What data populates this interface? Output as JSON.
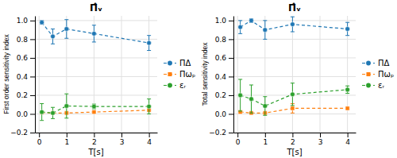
{
  "chart_data": [
    {
      "type": "line",
      "title": "Π̂ᵥ",
      "xlabel": "T[s]",
      "ylabel": "First order sensitivity index",
      "x": [
        0.1,
        0.5,
        1.0,
        2.0,
        4.0
      ],
      "series": [
        {
          "name": "ΠΔ",
          "marker": "circle",
          "line_style": "dashed",
          "values": [
            0.98,
            0.83,
            0.91,
            0.86,
            0.76
          ],
          "errors": [
            0.02,
            0.08,
            0.1,
            0.09,
            0.08
          ]
        },
        {
          "name": "Πωₚ",
          "marker": "square",
          "line_style": "dashed",
          "values": [
            0.015,
            0.01,
            0.01,
            0.02,
            0.04
          ],
          "errors": [
            0.004,
            0.004,
            0.004,
            0.004,
            0.004
          ]
        },
        {
          "name": "εᵣ",
          "marker": "circle",
          "line_style": "dashed",
          "values": [
            0.02,
            0.01,
            0.085,
            0.08,
            0.08
          ],
          "errors": [
            0.09,
            0.06,
            0.13,
            0.025,
            0.08
          ]
        }
      ],
      "xlim": [
        -0.15,
        4.3
      ],
      "xticks": [
        0,
        1,
        2,
        3,
        4
      ],
      "ylim": [
        -0.2,
        1.05
      ],
      "yticks": [
        {
          "value": -0.2,
          "label": "−0.2"
        },
        {
          "value": 0,
          "label": "0.0"
        },
        {
          "value": 0.2,
          "label": "0.2"
        },
        {
          "value": 0.4,
          "label": "0.4"
        },
        {
          "value": 0.6,
          "label": "0.6"
        },
        {
          "value": 0.8,
          "label": "0.8"
        },
        {
          "value": 1.0,
          "label": "1.0"
        }
      ],
      "grid": true,
      "legend": "right"
    },
    {
      "type": "line",
      "title": "Π̂ᵥ",
      "xlabel": "T[s]",
      "ylabel": "Total sensitivity index",
      "x": [
        0.1,
        0.5,
        1.0,
        2.0,
        4.0
      ],
      "series": [
        {
          "name": "ΠΔ",
          "marker": "circle",
          "line_style": "dashed",
          "values": [
            0.93,
            1.0,
            0.9,
            0.96,
            0.91
          ],
          "errors": [
            0.07,
            0.02,
            0.1,
            0.08,
            0.07
          ]
        },
        {
          "name": "Πωₚ",
          "marker": "square",
          "line_style": "dashed",
          "values": [
            0.02,
            0.01,
            0.01,
            0.06,
            0.06
          ],
          "errors": [
            0.005,
            0.005,
            0.005,
            0.05,
            0.01
          ]
        },
        {
          "name": "εᵣ",
          "marker": "circle",
          "line_style": "dashed",
          "values": [
            0.2,
            0.16,
            0.085,
            0.21,
            0.26
          ],
          "errors": [
            0.17,
            0.15,
            0.1,
            0.12,
            0.04
          ]
        }
      ],
      "xlim": [
        -0.15,
        4.3
      ],
      "xticks": [
        0,
        1,
        2,
        3,
        4
      ],
      "ylim": [
        -0.2,
        1.05
      ],
      "yticks": [
        {
          "value": -0.2,
          "label": "−0.2"
        },
        {
          "value": 0,
          "label": "0.0"
        },
        {
          "value": 0.2,
          "label": "0.2"
        },
        {
          "value": 0.4,
          "label": "0.4"
        },
        {
          "value": 0.6,
          "label": "0.6"
        },
        {
          "value": 0.8,
          "label": "0.8"
        },
        {
          "value": 1.0,
          "label": "1.0"
        }
      ],
      "grid": true,
      "legend": "right"
    }
  ]
}
